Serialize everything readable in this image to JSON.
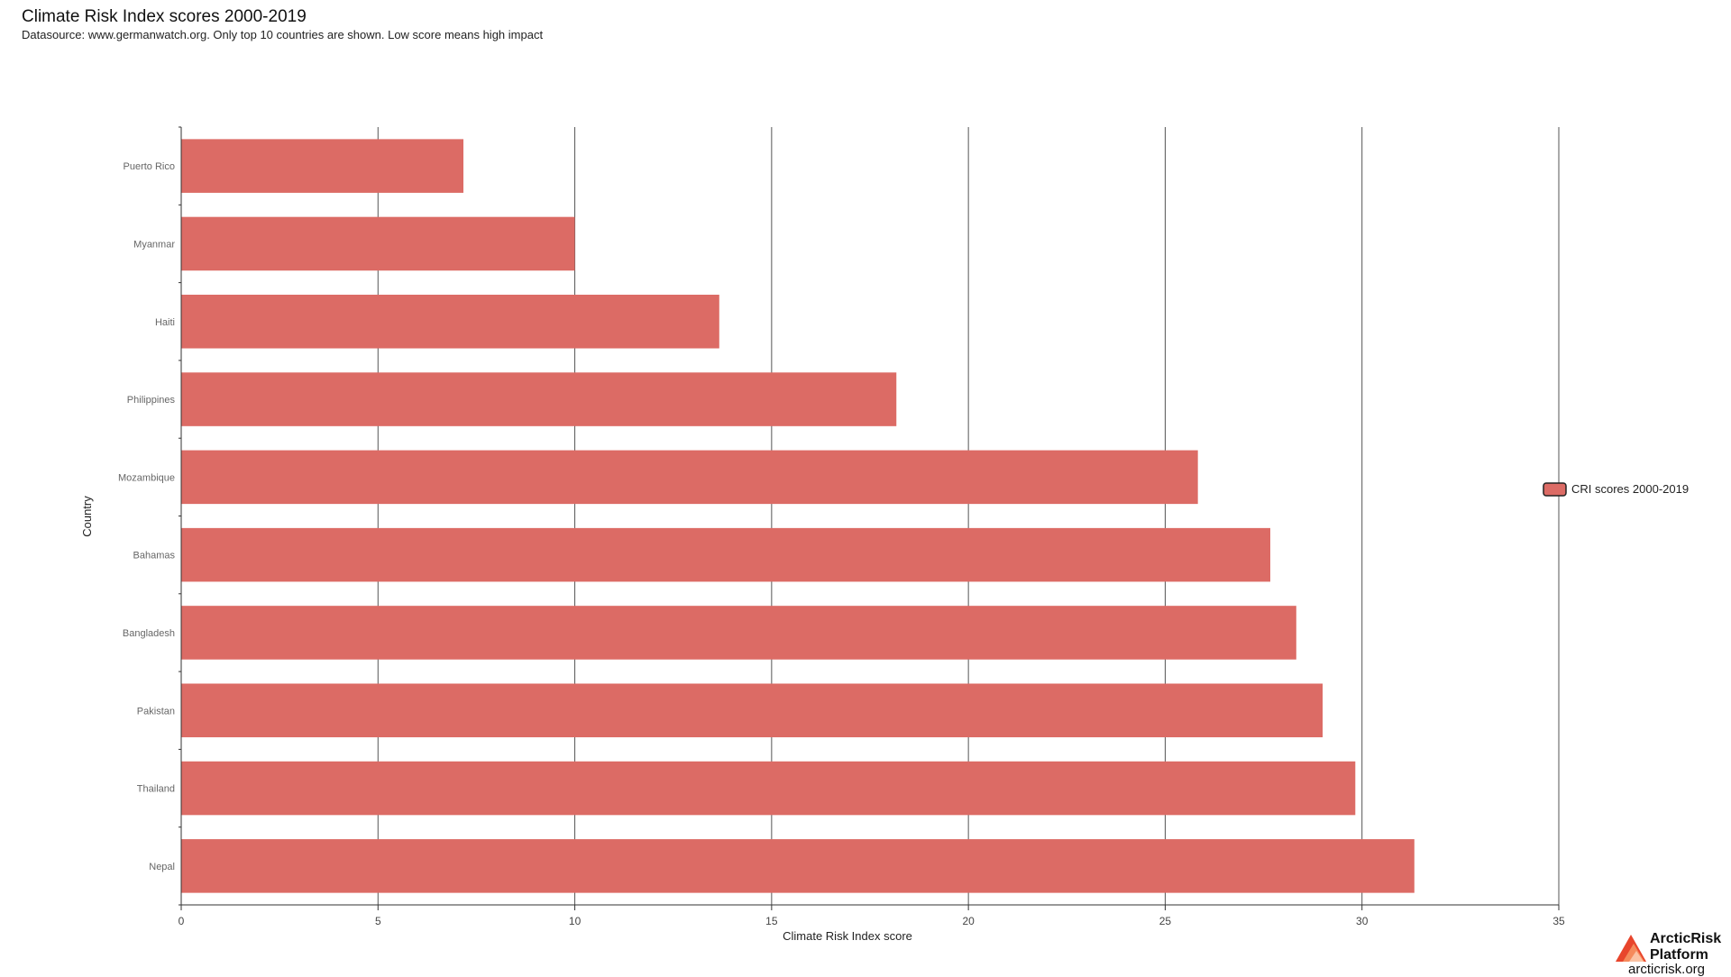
{
  "header": {
    "title": "Climate Risk Index scores 2000-2019",
    "subtitle": "Datasource: www.germanwatch.org. Only top 10 countries are shown. Low score means high impact"
  },
  "logo": {
    "line1": "ArcticRisk",
    "line2": "Platform",
    "url": "arcticrisk.org",
    "icon": "arcticrisk-logo-icon"
  },
  "chart_data": {
    "type": "bar",
    "orientation": "horizontal",
    "categories": [
      "Puerto Rico",
      "Myanmar",
      "Haiti",
      "Philippines",
      "Mozambique",
      "Bahamas",
      "Bangladesh",
      "Pakistan",
      "Thailand",
      "Nepal"
    ],
    "series": [
      {
        "name": "CRI scores 2000-2019",
        "values": [
          7.17,
          10.0,
          13.67,
          18.17,
          25.83,
          27.67,
          28.33,
          29.0,
          29.83,
          31.33
        ]
      }
    ],
    "xlabel": "Climate Risk Index score",
    "ylabel": "Country",
    "xlim": [
      0,
      35
    ],
    "xticks": [
      0,
      5,
      10,
      15,
      20,
      25,
      30,
      35
    ],
    "grid": "vertical",
    "legend_position": "right",
    "bar_color": "#dc6b65",
    "grid_color": "#555555"
  }
}
